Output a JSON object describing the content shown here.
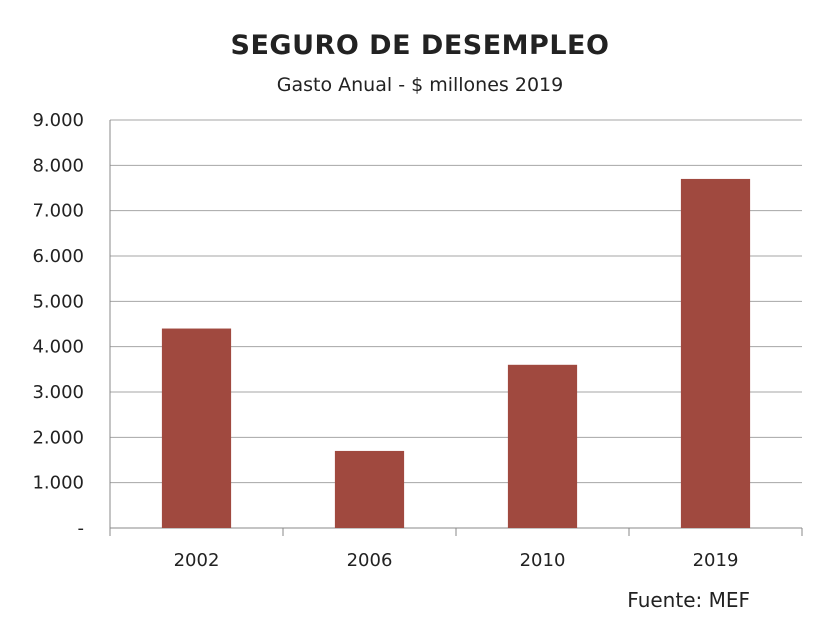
{
  "chart_data": {
    "type": "bar",
    "title": "SEGURO DE DESEMPLEO",
    "subtitle": "Gasto Anual  - $ millones 2019",
    "categories": [
      "2002",
      "2006",
      "2010",
      "2019"
    ],
    "values": [
      4400,
      1700,
      3600,
      7700
    ],
    "ylim": [
      0,
      9000
    ],
    "yticks": [
      0,
      1000,
      2000,
      3000,
      4000,
      5000,
      6000,
      7000,
      8000,
      9000
    ],
    "ytick_labels": [
      "-",
      "1.000",
      "2.000",
      "3.000",
      "4.000",
      "5.000",
      "6.000",
      "7.000",
      "8.000",
      "9.000"
    ],
    "bar_color": "#A0493F",
    "grid": true,
    "source": "Fuente: MEF"
  }
}
